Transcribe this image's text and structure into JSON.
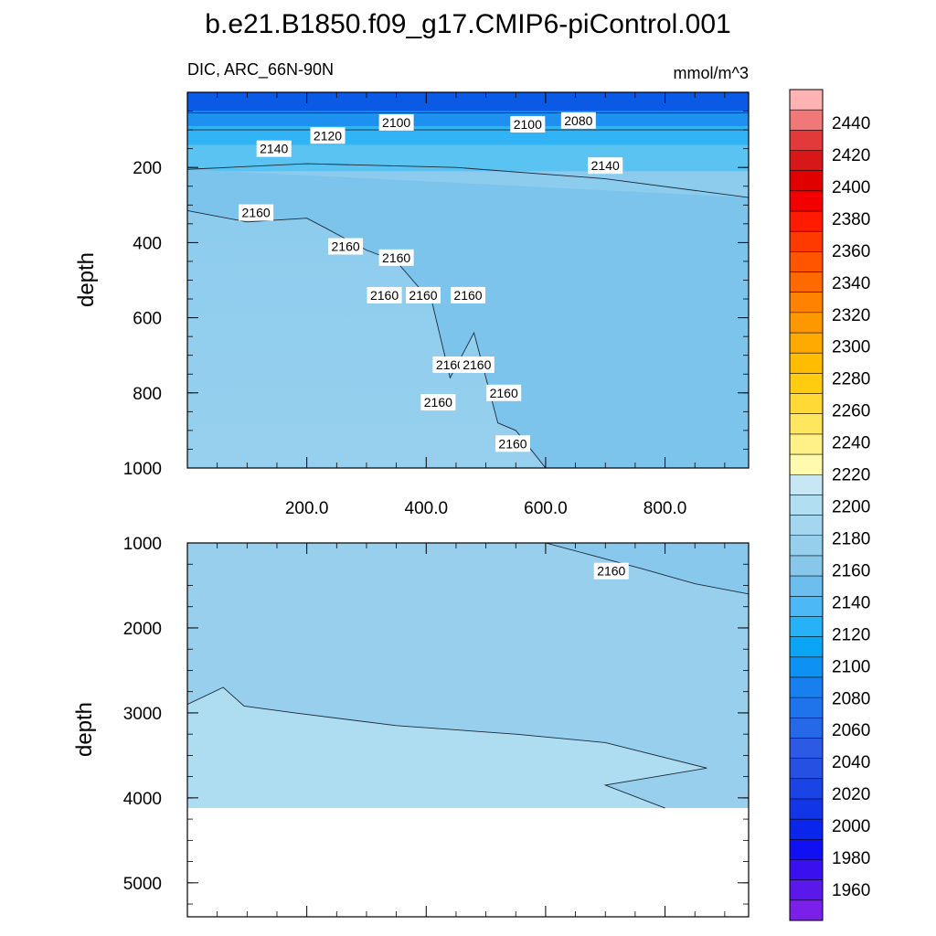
{
  "title": "b.e21.B1850.f09_g17.CMIP6-piControl.001",
  "variable_label": "DIC, ARC_66N-90N",
  "units_label": "mmol/m^3",
  "chart_data": {
    "type": "heatmap",
    "title": "b.e21.B1850.f09_g17.CMIP6-piControl.001",
    "subtitle": "DIC, ARC_66N-90N",
    "units": "mmol/m^3",
    "grid": false,
    "legend_placement": "right",
    "x_ticks": [
      "200.0",
      "400.0",
      "600.0",
      "800.0"
    ],
    "xlim": [
      0,
      940
    ],
    "panels": [
      {
        "id": "upper",
        "ylabel": "depth",
        "ylim": [
          0,
          1000
        ],
        "y_ticks": [
          "200",
          "400",
          "600",
          "800",
          "1000"
        ],
        "y_tick_values": [
          200,
          400,
          600,
          800,
          1000
        ],
        "bands": [
          {
            "top": 0,
            "bottom": 50,
            "color": "#0a5ae6"
          },
          {
            "top": 50,
            "bottom": 90,
            "color": "#1e90f0"
          },
          {
            "top": 90,
            "bottom": 140,
            "color": "#31b4f5"
          },
          {
            "top": 140,
            "bottom": 210,
            "color": "#5ac3f2"
          }
        ],
        "contours": [
          {
            "label": "2100",
            "x": [
              0,
              940
            ],
            "y": [
              55,
              55
            ]
          },
          {
            "label": "2120",
            "x": [
              0,
              940
            ],
            "y": [
              100,
              100
            ]
          },
          {
            "label": "2140",
            "x": [
              0,
              200,
              450,
              700,
              940
            ],
            "y": [
              205,
              190,
              200,
              230,
              280
            ]
          },
          {
            "label": "2160",
            "x": [
              0,
              100,
              200,
              230,
              300,
              350,
              410,
              440,
              480,
              520,
              550,
              575,
              600
            ],
            "y": [
              315,
              345,
              335,
              360,
              420,
              450,
              560,
              760,
              640,
              880,
              900,
              950,
              1000
            ]
          }
        ],
        "contour_labels": [
          {
            "text": "2100",
            "x": 350,
            "y": 80
          },
          {
            "text": "2100",
            "x": 570,
            "y": 85
          },
          {
            "text": "2080",
            "x": 655,
            "y": 75
          },
          {
            "text": "2120",
            "x": 235,
            "y": 115
          },
          {
            "text": "2140",
            "x": 145,
            "y": 150
          },
          {
            "text": "2140",
            "x": 700,
            "y": 195
          },
          {
            "text": "2160",
            "x": 115,
            "y": 320
          },
          {
            "text": "2160",
            "x": 265,
            "y": 410
          },
          {
            "text": "2160",
            "x": 350,
            "y": 440
          },
          {
            "text": "2160",
            "x": 330,
            "y": 540
          },
          {
            "text": "2160",
            "x": 395,
            "y": 540
          },
          {
            "text": "2160",
            "x": 470,
            "y": 540
          },
          {
            "text": "2160",
            "x": 440,
            "y": 725
          },
          {
            "text": "2160",
            "x": 485,
            "y": 725
          },
          {
            "text": "2160",
            "x": 420,
            "y": 825
          },
          {
            "text": "2160",
            "x": 530,
            "y": 800
          },
          {
            "text": "2160",
            "x": 545,
            "y": 935
          }
        ]
      },
      {
        "id": "lower",
        "ylabel": "depth",
        "ylim": [
          1000,
          5400
        ],
        "y_ticks": [
          "1000",
          "2000",
          "3000",
          "4000",
          "5000"
        ],
        "y_tick_values": [
          1000,
          2000,
          3000,
          4000,
          5000
        ],
        "bottom_of_data": 4120,
        "bands": [
          {
            "top": 1000,
            "bottom": 4120,
            "color": "#97cfed"
          }
        ],
        "contours": [
          {
            "label": "2160",
            "x": [
              600,
              680,
              760,
              850,
              940
            ],
            "y": [
              1000,
              1150,
              1300,
              1480,
              1600
            ]
          },
          {
            "label": "2180",
            "x": [
              0,
              60,
              95,
              180,
              350,
              550,
              700,
              870,
              700,
              700,
              800
            ],
            "y": [
              2900,
              2700,
              2920,
              3000,
              3150,
              3250,
              3350,
              3650,
              3850,
              3850,
              4120
            ]
          }
        ],
        "contour_labels": [
          {
            "text": "2160",
            "x": 710,
            "y": 1330
          }
        ]
      }
    ],
    "colorbar": {
      "labels": [
        "2440",
        "2420",
        "2400",
        "2380",
        "2360",
        "2340",
        "2320",
        "2300",
        "2280",
        "2260",
        "2240",
        "2220",
        "2200",
        "2180",
        "2160",
        "2140",
        "2120",
        "2100",
        "2080",
        "2060",
        "2040",
        "2020",
        "2000",
        "1980",
        "1960"
      ],
      "colors": [
        "#ffb3b3",
        "#f07878",
        "#e23a3a",
        "#d81818",
        "#e00000",
        "#f20000",
        "#ff1a00",
        "#ff3a00",
        "#ff5500",
        "#ff6a00",
        "#ff8200",
        "#ff9800",
        "#ffaa00",
        "#ffbc00",
        "#ffcc10",
        "#ffd935",
        "#ffe65f",
        "#fff087",
        "#fffaae",
        "#c8e7f5",
        "#b2def2",
        "#a4d7ef",
        "#96cfec",
        "#87c8ea",
        "#6cbeee",
        "#4cb8f5",
        "#27b2f7",
        "#0aa5f5",
        "#0d91f2",
        "#1780ee",
        "#1f74ec",
        "#2568e8",
        "#2c5ae4",
        "#2650e2",
        "#1b44e4",
        "#1236e7",
        "#0a26ec",
        "#1010f2",
        "#3a10ee",
        "#5a18ea",
        "#7a20e8"
      ]
    }
  }
}
